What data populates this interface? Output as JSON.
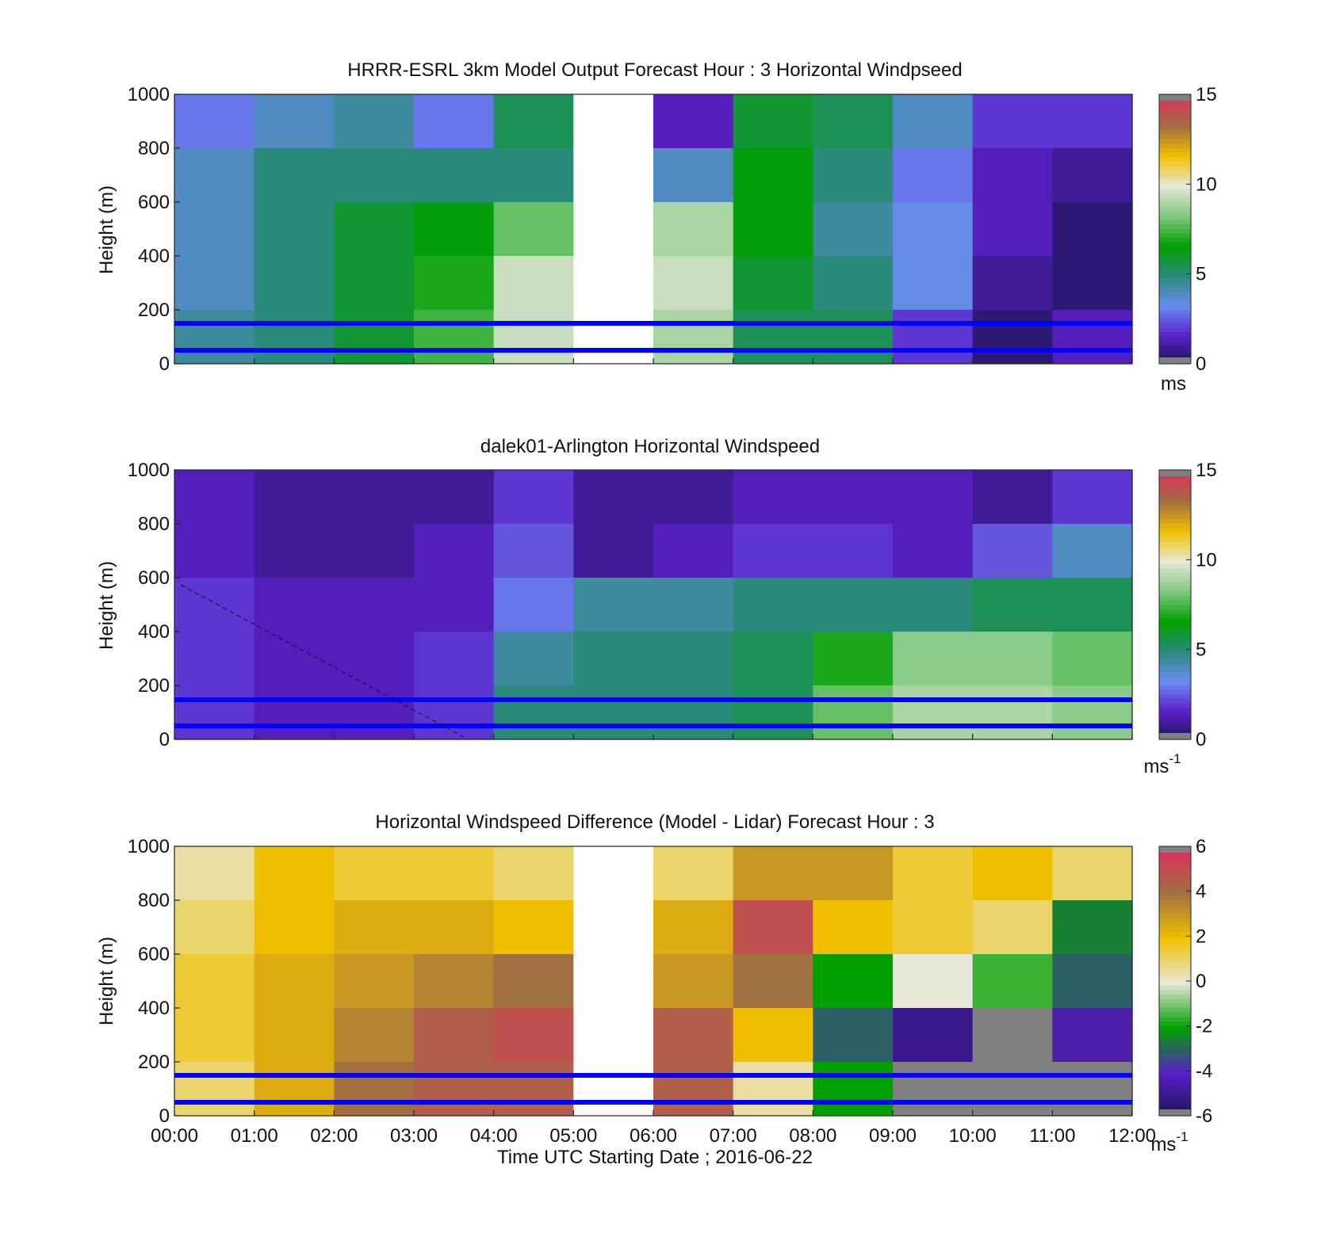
{
  "figure": {
    "time_ticks": [
      "00:00",
      "01:00",
      "02:00",
      "03:00",
      "04:00",
      "05:00",
      "06:00",
      "07:00",
      "08:00",
      "09:00",
      "10:00",
      "11:00",
      "12:00"
    ],
    "height_ticks": [
      "0",
      "200",
      "400",
      "600",
      "800",
      "1000"
    ],
    "x_label": "Time UTC  Starting Date ; 2016-06-22",
    "y_label": "Height (m)",
    "colors": {
      "speed_scale": [
        "#1a1550",
        "#5a1fc8",
        "#6a8cf0",
        "#2a8a7a",
        "#00a000",
        "#80c880",
        "#e8e8d8",
        "#f0c000",
        "#a07040",
        "#e03060"
      ],
      "diff_scale": [
        "#1a1550",
        "#5a1fc8",
        "#00a000",
        "#e8e8d8",
        "#f0c000",
        "#a07040",
        "#e03060"
      ],
      "overlay_line": "#0000ff",
      "missing": "#808080"
    }
  },
  "chart_data": [
    {
      "type": "heatmap",
      "title": "HRRR-ESRL 3km Model Output   Forecast Hour : 3 Horizontal Windpseed",
      "xlabel": "",
      "ylabel": "Height (m)",
      "x": [
        "00:00",
        "01:00",
        "02:00",
        "03:00",
        "04:00",
        "05:00",
        "06:00",
        "07:00",
        "08:00",
        "09:00",
        "10:00",
        "11:00"
      ],
      "y": [
        1000,
        800,
        600,
        400,
        200,
        0
      ],
      "ylim": [
        0,
        1000
      ],
      "colorbar": {
        "ticks": [
          "15",
          "10",
          "5",
          "0"
        ],
        "range": [
          0,
          15
        ],
        "unit": "ms"
      },
      "overlay_lines_height_m": [
        160,
        55
      ],
      "values_approx": [
        [
          3.0,
          4.0,
          4.5,
          3.0,
          5.5,
          null,
          1.5,
          6.0,
          5.5,
          4.0,
          2.0,
          2.0
        ],
        [
          4.0,
          5.0,
          5.0,
          5.0,
          5.0,
          null,
          4.0,
          6.5,
          5.0,
          3.0,
          1.5,
          1.0
        ],
        [
          4.0,
          5.0,
          6.0,
          6.5,
          8.0,
          null,
          9.0,
          6.5,
          4.5,
          3.5,
          1.5,
          0.5
        ],
        [
          4.0,
          5.0,
          6.0,
          7.0,
          9.5,
          null,
          9.5,
          6.0,
          5.0,
          3.5,
          1.0,
          0.5
        ],
        [
          4.5,
          5.0,
          6.0,
          7.5,
          9.5,
          null,
          9.0,
          5.5,
          5.5,
          2.0,
          0.5,
          1.5
        ]
      ]
    },
    {
      "type": "heatmap",
      "title": "dalek01-Arlington  Horizontal Windspeed",
      "xlabel": "",
      "ylabel": "Height (m)",
      "x": [
        "00:00",
        "01:00",
        "02:00",
        "03:00",
        "04:00",
        "05:00",
        "06:00",
        "07:00",
        "08:00",
        "09:00",
        "10:00",
        "11:00"
      ],
      "y": [
        1000,
        800,
        600,
        400,
        200,
        0
      ],
      "ylim": [
        0,
        1000
      ],
      "colorbar": {
        "ticks": [
          "15",
          "10",
          "5",
          "0"
        ],
        "range": [
          0,
          15
        ],
        "unit": "ms-1"
      },
      "overlay_lines_height_m": [
        160,
        55
      ],
      "values_approx": [
        [
          1.5,
          1.0,
          1.0,
          1.0,
          2.0,
          1.0,
          1.0,
          1.5,
          1.5,
          1.5,
          1.0,
          2.0
        ],
        [
          1.5,
          1.0,
          1.0,
          1.5,
          2.5,
          1.0,
          1.5,
          2.0,
          2.0,
          1.5,
          2.5,
          4.0
        ],
        [
          2.0,
          1.5,
          1.5,
          1.5,
          3.0,
          4.5,
          4.5,
          5.0,
          5.0,
          5.0,
          5.5,
          5.5
        ],
        [
          2.0,
          1.5,
          1.5,
          2.0,
          4.5,
          5.0,
          5.0,
          5.5,
          7.0,
          8.5,
          8.5,
          8.0
        ],
        [
          2.0,
          1.5,
          1.5,
          2.0,
          5.0,
          5.0,
          5.0,
          5.5,
          8.0,
          9.0,
          9.0,
          8.5
        ]
      ]
    },
    {
      "type": "heatmap",
      "title": "Horizontal Windspeed Difference (Model - Lidar) Forecast Hour : 3",
      "xlabel": "Time UTC  Starting Date ; 2016-06-22",
      "ylabel": "Height (m)",
      "x": [
        "00:00",
        "01:00",
        "02:00",
        "03:00",
        "04:00",
        "05:00",
        "06:00",
        "07:00",
        "08:00",
        "09:00",
        "10:00",
        "11:00"
      ],
      "y": [
        1000,
        800,
        600,
        400,
        200,
        0
      ],
      "ylim": [
        0,
        1000
      ],
      "colorbar": {
        "ticks": [
          "6",
          "4",
          "2",
          "0",
          "-2",
          "-4",
          "-6"
        ],
        "range": [
          -6,
          6
        ],
        "unit": "ms-1"
      },
      "overlay_lines_height_m": [
        155,
        55
      ],
      "values_approx": [
        [
          0.5,
          2.0,
          1.5,
          1.5,
          1.0,
          null,
          1.0,
          3.0,
          3.0,
          1.5,
          2.0,
          1.0
        ],
        [
          1.0,
          2.0,
          2.5,
          2.5,
          2.0,
          null,
          2.5,
          5.0,
          2.0,
          1.5,
          1.0,
          -2.5
        ],
        [
          1.5,
          2.5,
          3.0,
          3.5,
          4.0,
          null,
          3.0,
          4.0,
          -2.0,
          0.0,
          -1.5,
          -3.0
        ],
        [
          1.5,
          2.5,
          3.5,
          4.5,
          5.0,
          null,
          4.5,
          2.0,
          -3.0,
          -5.0,
          null,
          -4.5
        ],
        [
          1.0,
          2.5,
          4.0,
          4.5,
          4.5,
          null,
          4.5,
          0.5,
          -2.0,
          null,
          null,
          null
        ]
      ]
    }
  ]
}
